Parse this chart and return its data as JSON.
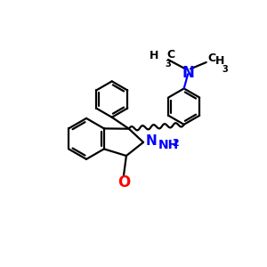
{
  "bg_color": "#ffffff",
  "bond_color": "#000000",
  "N_color": "#0000ff",
  "O_color": "#ff0000",
  "linewidth": 1.6,
  "figsize": [
    3.0,
    3.0
  ],
  "dpi": 100,
  "ring_r": 0.78,
  "xlim": [
    0,
    10
  ],
  "ylim": [
    0,
    10
  ]
}
